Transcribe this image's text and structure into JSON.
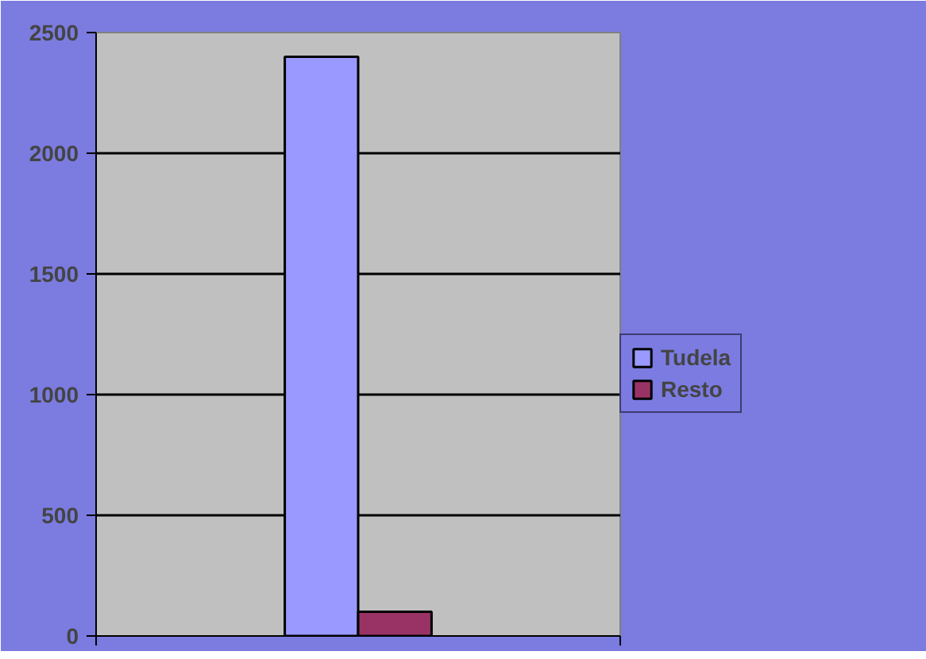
{
  "chart_data": {
    "type": "bar",
    "categories": [
      null
    ],
    "series": [
      {
        "name": "Tudela",
        "color": "#9999ff",
        "values": [
          2400
        ]
      },
      {
        "name": "Resto",
        "color": "#993366",
        "values": [
          100
        ]
      }
    ],
    "ylim": [
      0,
      2500
    ],
    "yticks": [
      0,
      500,
      1000,
      1500,
      2000,
      2500
    ],
    "grid": "y",
    "legend": "right"
  }
}
